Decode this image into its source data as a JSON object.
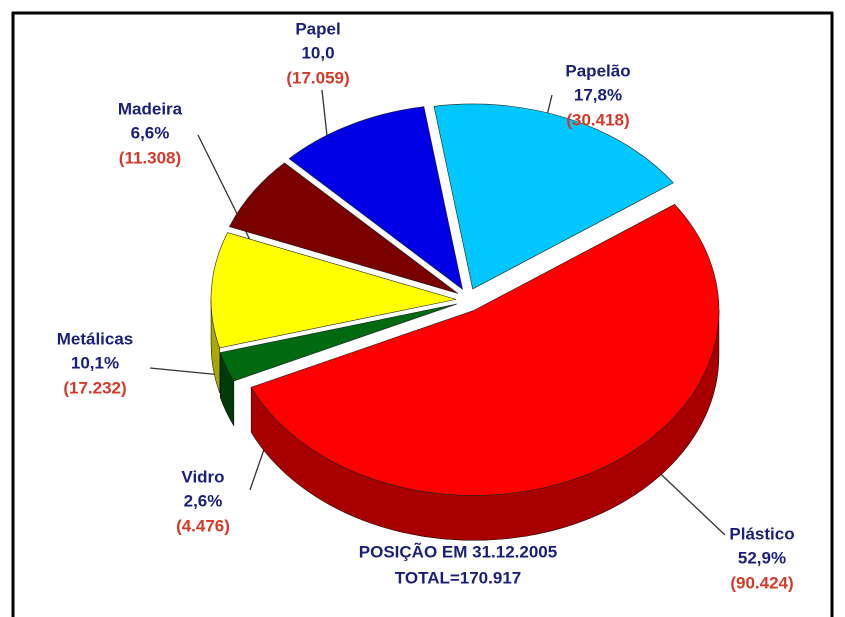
{
  "chart_data": {
    "type": "pie",
    "categories": [
      "Plástico",
      "Vidro",
      "Metálicas",
      "Madeira",
      "Papel",
      "Papelão"
    ],
    "values": [
      52.9,
      2.6,
      10.1,
      6.6,
      10.0,
      17.8
    ],
    "value_labels": [
      "52,9%",
      "2,6%",
      "10,1%",
      "6,6%",
      "10,0",
      "17,8%"
    ],
    "counts": [
      90424,
      4476,
      17232,
      11308,
      17059,
      30418
    ],
    "count_labels": [
      "(90.424)",
      "(4.476)",
      "(17.232)",
      "(11.308)",
      "(17.059)",
      "(30.418)"
    ],
    "colors": [
      "#ff0000",
      "#006a10",
      "#ffff00",
      "#7a0000",
      "#0000e6",
      "#00c8ff"
    ],
    "side_colors": [
      "#a80000",
      "#003a08",
      "#a8a800",
      "#4a0000",
      "#00008a",
      "#0088aa"
    ],
    "annotations": [
      "POSIÇÃO EM 31.12.2005",
      "TOTAL=170.917"
    ]
  }
}
